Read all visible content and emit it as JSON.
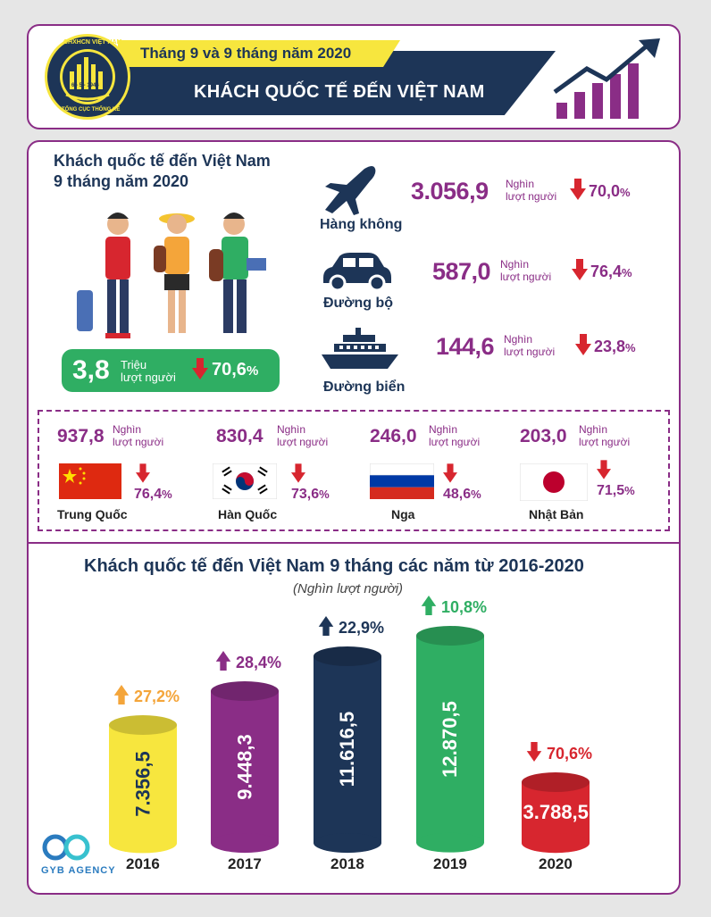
{
  "header": {
    "logo_ring_text": "CHXHCN VIỆT NAM",
    "logo_bottom_text": "TỔNG CỤC THỐNG KÊ",
    "logo_date": "6 - 5 - 1946",
    "subtitle": "Tháng 9 và 9 tháng năm 2020",
    "title": "KHÁCH QUỐC TẾ ĐẾN VIỆT NAM"
  },
  "summary": {
    "heading_line1": "Khách quốc tế đến Việt Nam",
    "heading_line2": "9 tháng năm 2020",
    "total_value": "3,8",
    "total_unit_line1": "Triệu",
    "total_unit_line2": "lượt người",
    "total_change": "70,6",
    "percent_sign": "%"
  },
  "modes": [
    {
      "label": "Hàng không",
      "value": "3.056,9",
      "unit_line1": "Nghìn",
      "unit_line2": "lượt người",
      "change": "70,0",
      "icon": "airplane-icon"
    },
    {
      "label": "Đường bộ",
      "value": "587,0",
      "unit_line1": "Nghìn",
      "unit_line2": "lượt người",
      "change": "76,4",
      "icon": "car-icon"
    },
    {
      "label": "Đường biển",
      "value": "144,6",
      "unit_line1": "Nghìn",
      "unit_line2": "lượt người",
      "change": "23,8",
      "icon": "ship-icon"
    }
  ],
  "countries": [
    {
      "name": "Trung Quốc",
      "value": "937,8",
      "unit_line1": "Nghìn",
      "unit_line2": "lượt người",
      "change": "76,4",
      "flag": "china-flag-icon"
    },
    {
      "name": "Hàn Quốc",
      "value": "830,4",
      "unit_line1": "Nghìn",
      "unit_line2": "lượt người",
      "change": "73,6",
      "flag": "korea-flag-icon"
    },
    {
      "name": "Nga",
      "value": "246,0",
      "unit_line1": "Nghìn",
      "unit_line2": "lượt người",
      "change": "48,6",
      "flag": "russia-flag-icon"
    },
    {
      "name": "Nhật Bản",
      "value": "203,0",
      "unit_line1": "Nghìn",
      "unit_line2": "lượt người",
      "change": "71,5",
      "flag": "japan-flag-icon"
    }
  ],
  "colors": {
    "purple": "#8a2d86",
    "navy": "#1d3557",
    "green": "#2fae63",
    "red": "#d7262f",
    "yellow": "#f7e63e",
    "orange": "#f4a53a"
  },
  "watermark": "GYB AGENCY",
  "chart_data": {
    "type": "bar",
    "title": "Khách quốc tế đến Việt Nam 9 tháng các năm từ 2016-2020",
    "subtitle": "(Nghìn lượt người)",
    "categories": [
      "2016",
      "2017",
      "2018",
      "2019",
      "2020"
    ],
    "values": [
      7356.5,
      9448.3,
      11616.5,
      12870.5,
      3788.5
    ],
    "value_labels": [
      "7.356,5",
      "9.448,3",
      "11.616,5",
      "12.870,5",
      "3.788,5"
    ],
    "changes": [
      "27,2%",
      "28,4%",
      "22,9%",
      "10,8%",
      "70,6%"
    ],
    "change_directions": [
      "up",
      "up",
      "up",
      "up",
      "down"
    ],
    "bar_colors": [
      "#f7e63e",
      "#8a2d86",
      "#1d3557",
      "#2fae63",
      "#d7262f"
    ],
    "change_colors": [
      "#f4a53a",
      "#8a2d86",
      "#1d3557",
      "#2fae63",
      "#d7262f"
    ],
    "label_colors": [
      "#1d3557",
      "#ffffff",
      "#ffffff",
      "#ffffff",
      "#ffffff"
    ],
    "ylim": [
      0,
      14000
    ]
  }
}
